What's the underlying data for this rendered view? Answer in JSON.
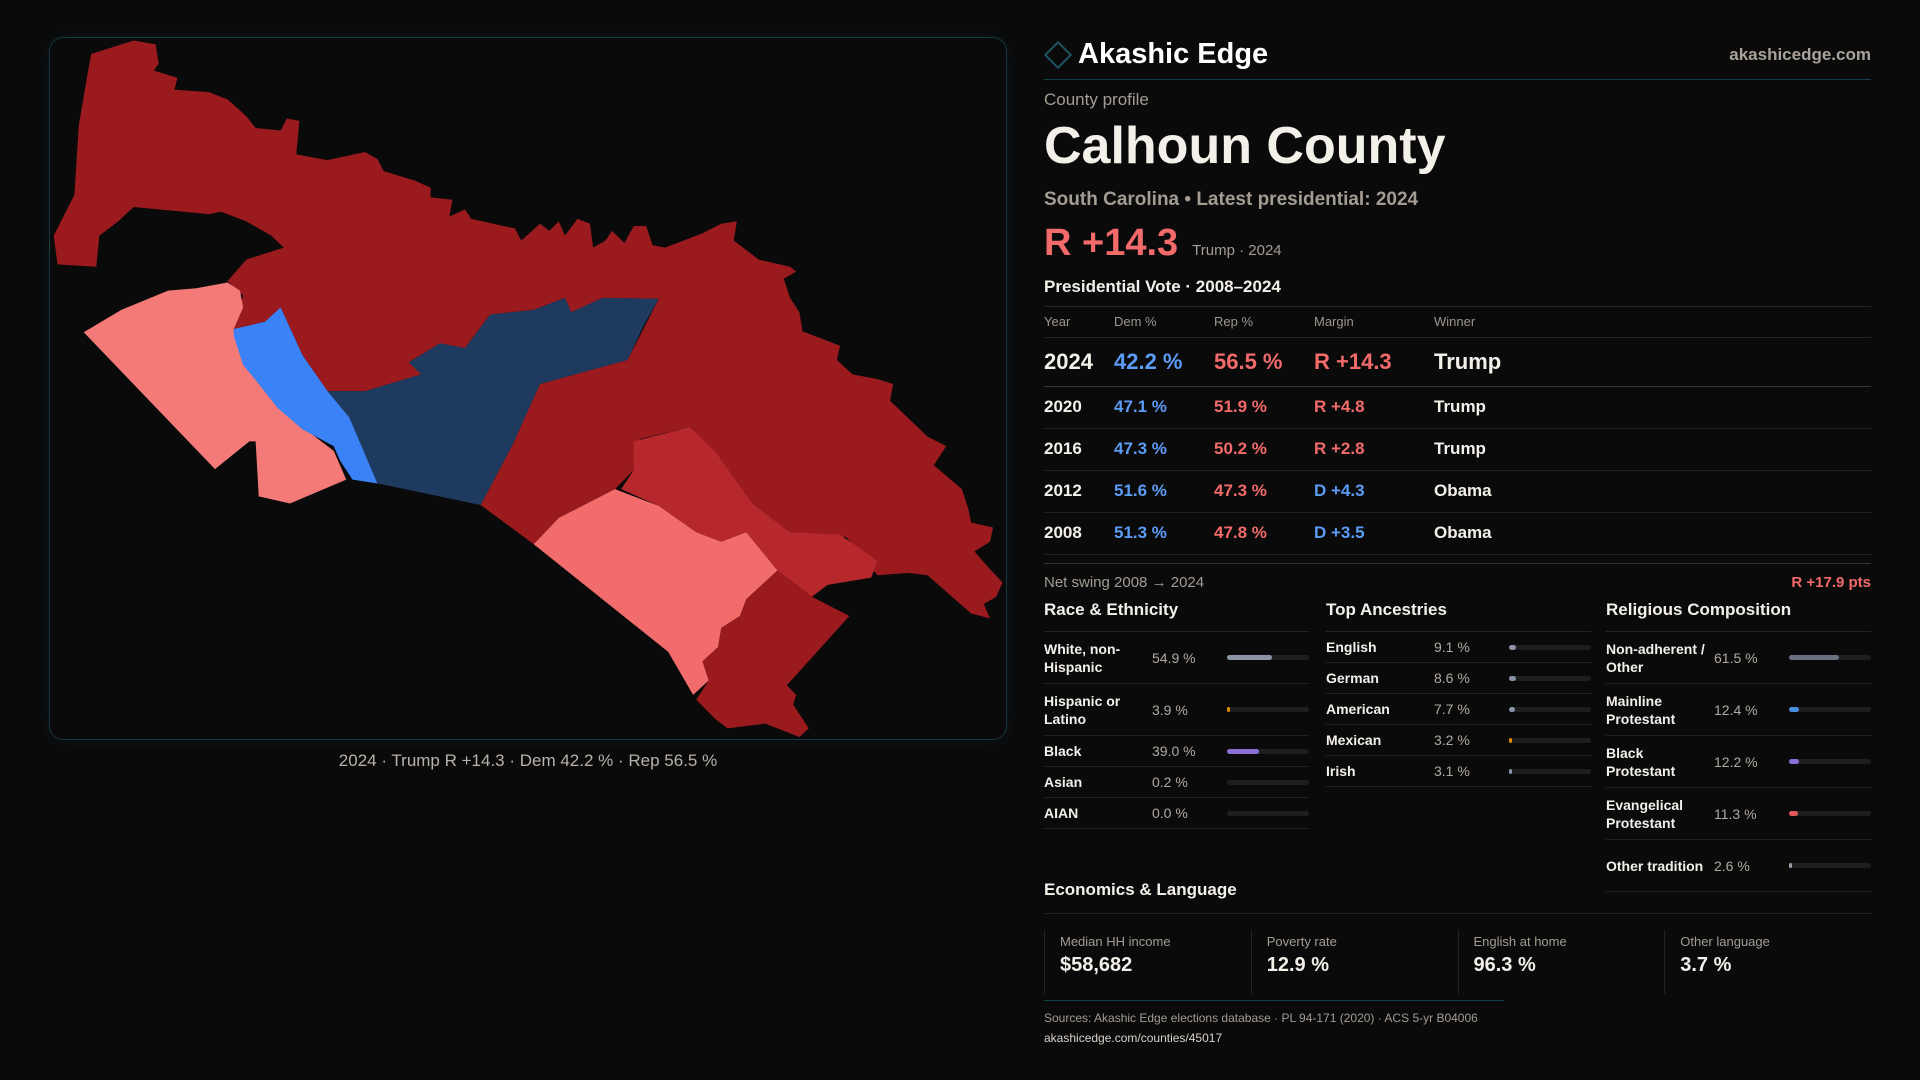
{
  "brand": {
    "name": "Akashic Edge",
    "site": "akashicedge.com"
  },
  "profile": {
    "kicker": "County profile",
    "title": "Calhoun County",
    "subtitle": "South Carolina • Latest presidential: 2024",
    "margin": "R +14.3",
    "margin_note": "Trump · 2024"
  },
  "map": {
    "caption": "2024 · Trump R +14.3 · Dem 42.2 % · Rep 56.5 %",
    "colors": {
      "strong_r": "#9b1a1e",
      "lean_r": "#b7282c",
      "light_r": "#f47372",
      "navy_d": "#1f3a5f",
      "blue_d": "#3b82f6"
    }
  },
  "votes": {
    "heading": "Presidential Vote · 2008–2024",
    "columns": [
      "Year",
      "Dem %",
      "Rep %",
      "Margin",
      "Winner"
    ],
    "rows": [
      {
        "year": "2024",
        "dem": "42.2 %",
        "rep": "56.5 %",
        "margin": "R +14.3",
        "party": "r",
        "winner": "Trump"
      },
      {
        "year": "2020",
        "dem": "47.1 %",
        "rep": "51.9 %",
        "margin": "R +4.8",
        "party": "r",
        "winner": "Trump"
      },
      {
        "year": "2016",
        "dem": "47.3 %",
        "rep": "50.2 %",
        "margin": "R +2.8",
        "party": "r",
        "winner": "Trump"
      },
      {
        "year": "2012",
        "dem": "51.6 %",
        "rep": "47.3 %",
        "margin": "D +4.3",
        "party": "d",
        "winner": "Obama"
      },
      {
        "year": "2008",
        "dem": "51.3 %",
        "rep": "47.8 %",
        "margin": "D +3.5",
        "party": "d",
        "winner": "Obama"
      }
    ],
    "swing_label": "Net swing 2008 → 2024",
    "swing_value": "R +17.9 pts"
  },
  "race": {
    "heading": "Race & Ethnicity",
    "items": [
      {
        "label": "White, non-Hispanic",
        "value": "54.9 %",
        "pct": 54.9,
        "color": "#8a94a6"
      },
      {
        "label": "Hispanic or Latino",
        "value": "3.9 %",
        "pct": 3.9,
        "color": "#e08a00"
      },
      {
        "label": "Black",
        "value": "39.0 %",
        "pct": 39.0,
        "color": "#8b6fd6"
      },
      {
        "label": "Asian",
        "value": "0.2 %",
        "pct": 0.2,
        "color": "#8a94a6"
      },
      {
        "label": "AIAN",
        "value": "0.0 %",
        "pct": 0.0,
        "color": "#8a94a6"
      }
    ]
  },
  "ancestry": {
    "heading": "Top Ancestries",
    "items": [
      {
        "label": "English",
        "value": "9.1 %",
        "pct": 9.1,
        "color": "#8a94a6"
      },
      {
        "label": "German",
        "value": "8.6 %",
        "pct": 8.6,
        "color": "#8a94a6"
      },
      {
        "label": "American",
        "value": "7.7 %",
        "pct": 7.7,
        "color": "#8a94a6"
      },
      {
        "label": "Mexican",
        "value": "3.2 %",
        "pct": 3.2,
        "color": "#e08a00"
      },
      {
        "label": "Irish",
        "value": "3.1 %",
        "pct": 3.1,
        "color": "#8a94a6"
      }
    ]
  },
  "religion": {
    "heading": "Religious Composition",
    "items": [
      {
        "label": "Non-adherent / Other",
        "value": "61.5 %",
        "pct": 61.5,
        "color": "#6b7080"
      },
      {
        "label": "Mainline Protestant",
        "value": "12.4 %",
        "pct": 12.4,
        "color": "#4a8fe0"
      },
      {
        "label": "Black Protestant",
        "value": "12.2 %",
        "pct": 12.2,
        "color": "#8b6fd6"
      },
      {
        "label": "Evangelical Protestant",
        "value": "11.3 %",
        "pct": 11.3,
        "color": "#e05a5a"
      },
      {
        "label": "Other tradition",
        "value": "2.6 %",
        "pct": 2.6,
        "color": "#9aa0aa"
      }
    ]
  },
  "economics": {
    "heading": "Economics & Language",
    "stats": [
      {
        "label": "Median HH income",
        "value": "$58,682"
      },
      {
        "label": "Poverty rate",
        "value": "12.9 %"
      },
      {
        "label": "English at home",
        "value": "96.3 %"
      },
      {
        "label": "Other language",
        "value": "3.7 %"
      }
    ]
  },
  "sources": {
    "text": "Sources: Akashic Edge elections database · PL 94-171 (2020) · ACS 5-yr B04006",
    "url": "akashicedge.com/counties/45017"
  }
}
